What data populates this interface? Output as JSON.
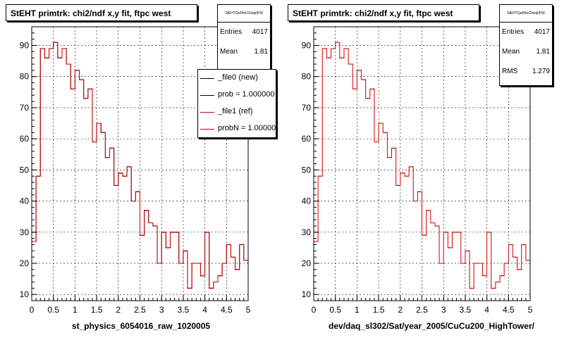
{
  "chart_data": [
    {
      "type": "bar",
      "title": "StEHT primtrk: chi2/ndf x,y fit, ftpc west",
      "xlabel": "st_physics_6054016_raw_1020005",
      "ylabel": "",
      "xlim": [
        0,
        5
      ],
      "ylim": [
        8,
        96
      ],
      "x_ticks": [
        0,
        0.5,
        1,
        1.5,
        2,
        2.5,
        3,
        3.5,
        4,
        4.5,
        5
      ],
      "y_ticks": [
        10,
        20,
        30,
        40,
        50,
        60,
        70,
        80,
        90
      ],
      "grid": true,
      "bins": 50,
      "series": [
        {
          "name": "_file0 (new)",
          "color": "#000000",
          "values": [
            27,
            48,
            89,
            86,
            89,
            91,
            86,
            89,
            84,
            76,
            82,
            79,
            73,
            76,
            59,
            65,
            62,
            54,
            57,
            45,
            49,
            48,
            51,
            40,
            43,
            29,
            37,
            33,
            32,
            20,
            30,
            25,
            30,
            30,
            20,
            24,
            12,
            20,
            20,
            16,
            30,
            12,
            14,
            16,
            20,
            26,
            22,
            18,
            26,
            21
          ]
        },
        {
          "name": "_file1 (ref)",
          "color": "#cc0000",
          "values": [
            27,
            48,
            89,
            86,
            89,
            91,
            86,
            89,
            84,
            76,
            82,
            79,
            73,
            76,
            59,
            65,
            62,
            54,
            57,
            45,
            49,
            48,
            51,
            40,
            43,
            29,
            37,
            33,
            32,
            20,
            30,
            25,
            30,
            30,
            20,
            24,
            12,
            20,
            20,
            16,
            30,
            12,
            14,
            16,
            20,
            26,
            22,
            18,
            26,
            21
          ]
        }
      ]
    },
    {
      "type": "bar",
      "title": "StEHT primtrk: chi2/ndf x,y fit, ftpc west",
      "xlabel": "dev/daq_sl302/Sat/year_2005/CuCu200_HighTower/",
      "ylabel": "",
      "xlim": [
        0,
        5
      ],
      "ylim": [
        8,
        96
      ],
      "x_ticks": [
        0,
        0.5,
        1,
        1.5,
        2,
        2.5,
        3,
        3.5,
        4,
        4.5,
        5
      ],
      "y_ticks": [
        10,
        20,
        30,
        40,
        50,
        60,
        70,
        80,
        90
      ],
      "grid": true,
      "bins": 50,
      "series": [
        {
          "name": "",
          "color": "#cc0000",
          "values": [
            27,
            48,
            89,
            86,
            89,
            91,
            86,
            89,
            84,
            76,
            82,
            79,
            73,
            76,
            59,
            65,
            62,
            54,
            57,
            45,
            49,
            48,
            51,
            40,
            43,
            29,
            37,
            33,
            32,
            20,
            30,
            25,
            30,
            30,
            20,
            24,
            12,
            20,
            20,
            16,
            30,
            12,
            14,
            16,
            20,
            26,
            22,
            18,
            26,
            21
          ]
        }
      ]
    }
  ],
  "left": {
    "title": "StEHT primtrk: chi2/ndf x,y fit, ftpc west",
    "stats": {
      "name": "StEHTQaPtrkChisq0FW",
      "entries_label": "Entries",
      "entries": "4017",
      "mean_label": "Mean",
      "mean": "1.81"
    },
    "legend": [
      {
        "label": "_file0 (new)",
        "color": "#000000"
      },
      {
        "label": "prob = 1.000000",
        "color": "#000000"
      },
      {
        "label": "_file1 (ref)",
        "color": "#cc0000"
      },
      {
        "label": "probN = 1.000000",
        "color": "#cc0000"
      }
    ],
    "xlabel": "st_physics_6054016_raw_1020005"
  },
  "right": {
    "title": "StEHT primtrk: chi2/ndf x,y fit, ftpc west",
    "stats": {
      "name": "StEHTQaPtrkChisq0FW",
      "entries_label": "Entries",
      "entries": "4017",
      "mean_label": "Mean",
      "mean": "1.81",
      "rms_label": "RMS",
      "rms": "1.279"
    },
    "xlabel": "dev/daq_sl302/Sat/year_2005/CuCu200_HighTower/"
  }
}
